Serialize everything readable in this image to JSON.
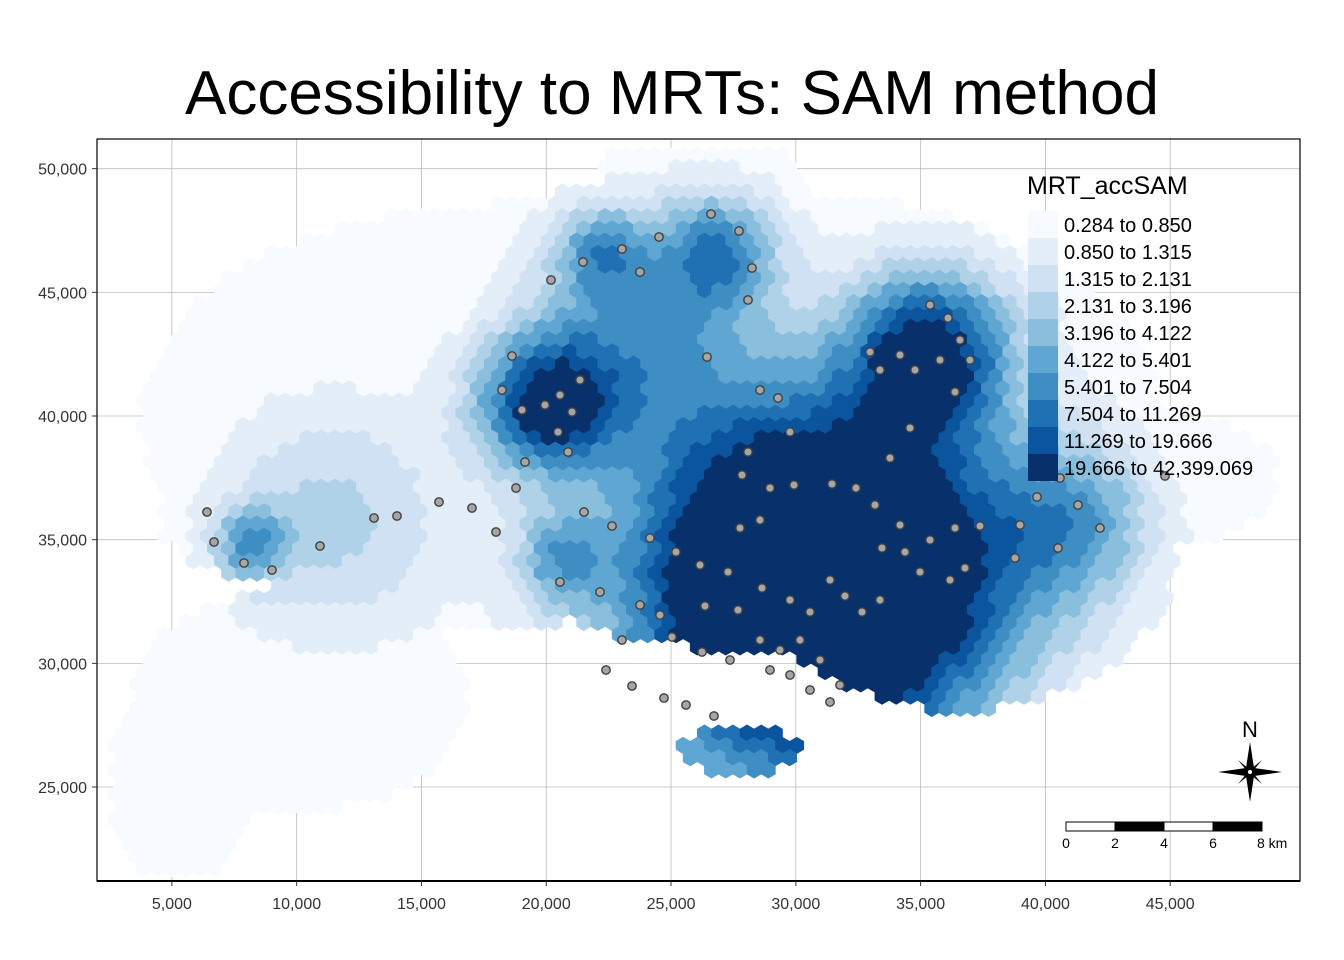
{
  "title": "Accessibility to MRTs: SAM method",
  "map": {
    "x_ticks": [
      "5,000",
      "10,000",
      "15,000",
      "20,000",
      "25,000",
      "30,000",
      "35,000",
      "40,000",
      "45,000"
    ],
    "x_tick_values": [
      5000,
      10000,
      15000,
      20000,
      25000,
      30000,
      35000,
      40000,
      45000
    ],
    "y_ticks": [
      "50,000",
      "45,000",
      "40,000",
      "35,000",
      "30,000",
      "25,000"
    ],
    "y_tick_values": [
      50000,
      45000,
      40000,
      35000,
      30000,
      25000
    ],
    "x_range": [
      2000,
      50200
    ],
    "y_range": [
      21200,
      51200
    ],
    "graticule": true
  },
  "legend": {
    "title": "MRT_accSAM",
    "classes": [
      {
        "label": "0.284 to 0.850",
        "color": "#f7fbff"
      },
      {
        "label": "0.850 to 1.315",
        "color": "#e3eef9"
      },
      {
        "label": "1.315 to 2.131",
        "color": "#cfe1f2"
      },
      {
        "label": "2.131 to 3.196",
        "color": "#b0d2e8"
      },
      {
        "label": "3.196 to 4.122",
        "color": "#89bedc"
      },
      {
        "label": "4.122 to 5.401",
        "color": "#60a6d2"
      },
      {
        "label": "5.401 to 7.504",
        "color": "#3e8ec4"
      },
      {
        "label": "7.504 to 11.269",
        "color": "#2070b4"
      },
      {
        "label": "11.269 to 19.666",
        "color": "#0b559f"
      },
      {
        "label": "19.666 to 42,399.069",
        "color": "#08306b"
      }
    ]
  },
  "scale_bar": {
    "labels": [
      "0",
      "2",
      "4",
      "6",
      "8 km"
    ]
  },
  "north_arrow": {
    "label": "N"
  },
  "colors": {
    "station_fill": "#a6a6a6",
    "station_stroke": "#404040"
  }
}
